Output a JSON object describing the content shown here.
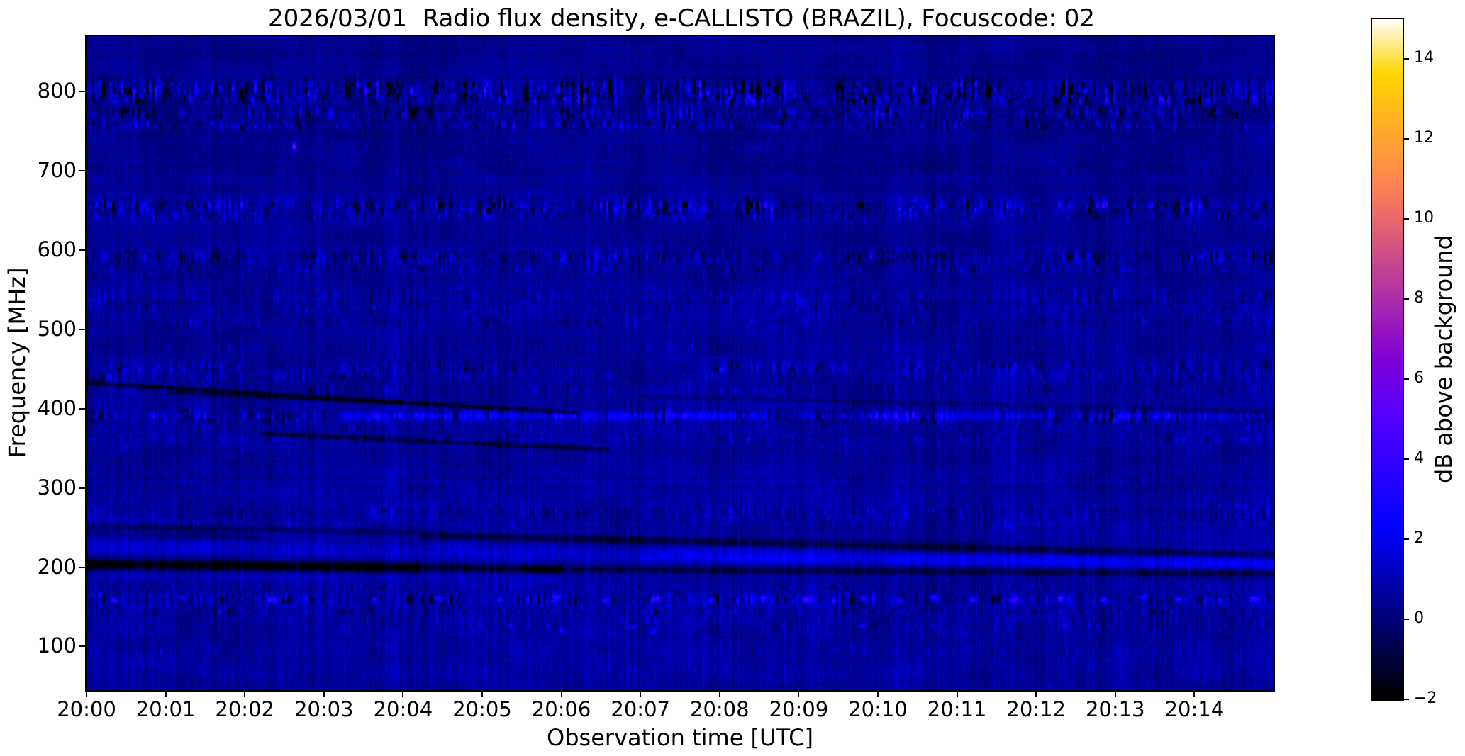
{
  "chart_data": {
    "type": "heatmap",
    "title": "2026/03/01  Radio flux density, e-CALLISTO (BRAZIL), Focuscode: 02",
    "xlabel": "Observation time [UTC]",
    "ylabel": "Frequency [MHz]",
    "colorbar_label": "dB above background",
    "colormap": "gnuplot2",
    "instrument": "e-CALLISTO (BRAZIL)",
    "date": "2026/03/01",
    "focuscode": "02",
    "x_axis": {
      "duration_minutes": 15,
      "ticks": [
        {
          "minute": 0,
          "label": "20:00"
        },
        {
          "minute": 1,
          "label": "20:01"
        },
        {
          "minute": 2,
          "label": "20:02"
        },
        {
          "minute": 3,
          "label": "20:03"
        },
        {
          "minute": 4,
          "label": "20:04"
        },
        {
          "minute": 5,
          "label": "20:05"
        },
        {
          "minute": 6,
          "label": "20:06"
        },
        {
          "minute": 7,
          "label": "20:07"
        },
        {
          "minute": 8,
          "label": "20:08"
        },
        {
          "minute": 9,
          "label": "20:09"
        },
        {
          "minute": 10,
          "label": "20:10"
        },
        {
          "minute": 11,
          "label": "20:11"
        },
        {
          "minute": 12,
          "label": "20:12"
        },
        {
          "minute": 13,
          "label": "20:13"
        },
        {
          "minute": 14,
          "label": "20:14"
        }
      ]
    },
    "y_axis": {
      "min_mhz": 45,
      "max_mhz": 870,
      "ticks": [
        {
          "value": 100,
          "label": "100"
        },
        {
          "value": 200,
          "label": "200"
        },
        {
          "value": 300,
          "label": "300"
        },
        {
          "value": 400,
          "label": "400"
        },
        {
          "value": 500,
          "label": "500"
        },
        {
          "value": 600,
          "label": "600"
        },
        {
          "value": 700,
          "label": "700"
        },
        {
          "value": 800,
          "label": "800"
        }
      ]
    },
    "colorbar": {
      "min_db": -2,
      "max_db": 15,
      "ticks": [
        {
          "value": -2,
          "label": "−2"
        },
        {
          "value": 0,
          "label": "0"
        },
        {
          "value": 2,
          "label": "2"
        },
        {
          "value": 4,
          "label": "4"
        },
        {
          "value": 6,
          "label": "6"
        },
        {
          "value": 8,
          "label": "8"
        },
        {
          "value": 10,
          "label": "10"
        },
        {
          "value": 12,
          "label": "12"
        },
        {
          "value": 14,
          "label": "14"
        }
      ]
    },
    "background": {
      "speckle_db": 0.55,
      "broad_col_db": 0.3,
      "row_db": 0.25,
      "blob_db": 0.45,
      "profile": [
        [
          45,
          0.6,
          0.66
        ],
        [
          100,
          0.64,
          0.78
        ],
        [
          200,
          0.58,
          0.72
        ],
        [
          300,
          0.55,
          0.66
        ],
        [
          450,
          0.52,
          0.62
        ],
        [
          600,
          0.48,
          0.55
        ],
        [
          700,
          0.38,
          0.4
        ],
        [
          800,
          0.34,
          0.32
        ],
        [
          870,
          0.32,
          0.26
        ]
      ]
    },
    "interference_bands": [
      {
        "f": 803,
        "w": 8,
        "bright": 3.4,
        "dark": 3.6
      },
      {
        "f": 790,
        "w": 4,
        "bright": 2.6,
        "dark": 3.0
      },
      {
        "f": 773,
        "w": 5,
        "bright": 2.2,
        "dark": 2.3
      },
      {
        "f": 758,
        "w": 4,
        "bright": 1.9,
        "dark": 2.0
      },
      {
        "f": 730,
        "w": 2.5,
        "bright": 0.7,
        "dark": 0.05
      },
      {
        "f": 700,
        "w": 3,
        "bright": 0.5,
        "dark": 0.2
      },
      {
        "f": 656,
        "w": 6.5,
        "bright": 2.8,
        "dark": 3.1
      },
      {
        "f": 644,
        "w": 4,
        "bright": 1.8,
        "dark": 1.4
      },
      {
        "f": 592,
        "w": 6,
        "bright": 2.1,
        "dark": 2.2
      },
      {
        "f": 576,
        "w": 4,
        "bright": 1.2,
        "dark": 1.0
      },
      {
        "f": 541,
        "w": 8,
        "bright": 1.2,
        "dark": 0.8
      },
      {
        "f": 526,
        "w": 4,
        "bright": 1.1,
        "dark": 0.75
      },
      {
        "f": 510,
        "w": 5,
        "bright": 1.1,
        "dark": 0.8
      },
      {
        "f": 478,
        "w": 4,
        "bright": 0.9,
        "dark": 0.5
      },
      {
        "f": 452,
        "w": 6,
        "bright": 1.5,
        "dark": 1.4
      },
      {
        "f": 440,
        "w": 4,
        "bright": 1.2,
        "dark": 1.0
      },
      {
        "f": 425,
        "w": 4,
        "bright": 1.1,
        "dark": 0.9
      },
      {
        "f": 391,
        "w": 6,
        "bright": 2.4,
        "dark": 2.7
      },
      {
        "f": 377,
        "w": 3,
        "bright": 1.0,
        "dark": 0.75
      },
      {
        "f": 362,
        "w": 4,
        "bright": 1.1,
        "dark": 0.9
      },
      {
        "f": 310,
        "w": 3,
        "bright": 0.7,
        "dark": 0.35
      },
      {
        "f": 270,
        "w": 8,
        "bright": 1.5,
        "dark": 0.9
      },
      {
        "f": 255,
        "w": 4,
        "bright": 1.0,
        "dark": 0.6
      },
      {
        "f": 176,
        "w": 3,
        "bright": 1.0,
        "dark": 1.2
      },
      {
        "f": 160,
        "w": 5,
        "bright": 2.6,
        "dark": 3.0
      },
      {
        "f": 145,
        "w": 3.5,
        "bright": 1.3,
        "dark": 1.6
      },
      {
        "f": 128,
        "w": 6,
        "bright": 1.1,
        "dark": 0.7
      },
      {
        "f": 95,
        "w": 5,
        "bright": 0.7,
        "dark": 0.45
      },
      {
        "f": 70,
        "w": 10,
        "bright": 0.6,
        "dark": 0.3
      }
    ],
    "drift_lines": [
      [
        0,
        433,
        6.2,
        395,
        -1.9,
        2.2
      ],
      [
        1.0,
        421,
        4.0,
        407,
        -1.2,
        2.0
      ],
      [
        2.2,
        369,
        6.6,
        349,
        -1.6,
        2.4
      ],
      [
        7.0,
        416,
        15,
        397,
        -0.7,
        2.2
      ],
      [
        0,
        204.5,
        4.2,
        200,
        -3.0,
        5
      ],
      [
        4.2,
        200,
        6.0,
        197.5,
        -1.8,
        4
      ],
      [
        5.5,
        198,
        15,
        192.5,
        -1.5,
        3.5
      ],
      [
        4.2,
        241,
        15,
        215.5,
        -1.6,
        4
      ],
      [
        0,
        252,
        4.2,
        244,
        -1.0,
        3
      ],
      [
        0,
        243,
        2.2,
        239,
        -0.8,
        2.5
      ],
      [
        0,
        231,
        7,
        219,
        0.6,
        6.5
      ],
      [
        7,
        219,
        15,
        207.5,
        0.95,
        6.5
      ],
      [
        0,
        222,
        7,
        212,
        0.5,
        5
      ],
      [
        7,
        212,
        15,
        202,
        0.8,
        5
      ],
      [
        3.2,
        391,
        8.6,
        391,
        1.4,
        4.5
      ],
      [
        9.0,
        391,
        12.2,
        391,
        1.0,
        4
      ],
      [
        12.8,
        390.5,
        14.6,
        390,
        0.9,
        4
      ],
      [
        0,
        190,
        6,
        185,
        0.4,
        7
      ]
    ],
    "vertical_lines": [
      {
        "t": 0.6,
        "amp": 0.6
      }
    ],
    "point_events": [
      [
        2.62,
        731,
        7.5,
        1.5,
        4
      ],
      [
        0.6,
        800,
        4.6,
        1.2,
        3
      ],
      [
        1.85,
        804,
        5.2,
        1.2,
        3
      ],
      [
        2.8,
        798,
        4.5,
        1.2,
        3
      ],
      [
        4.1,
        801,
        4.8,
        1.2,
        3
      ],
      [
        5.3,
        799,
        4.4,
        1.2,
        3
      ],
      [
        7.85,
        797,
        4.5,
        1.2,
        3
      ],
      [
        10.45,
        803,
        5.4,
        1.2,
        3
      ],
      [
        12.6,
        800,
        4.5,
        1.2,
        3
      ],
      [
        0.35,
        159,
        2.8,
        4,
        2.6
      ],
      [
        1.2,
        162,
        2.6,
        4,
        2.6
      ],
      [
        2.33,
        160,
        3.6,
        4,
        2.6
      ],
      [
        3.05,
        158,
        2.7,
        4,
        2.6
      ],
      [
        4.45,
        161,
        3.0,
        4,
        2.6
      ],
      [
        5.2,
        159,
        2.6,
        4,
        2.6
      ],
      [
        5.95,
        162,
        3.3,
        4,
        2.6
      ],
      [
        6.55,
        158,
        2.8,
        4,
        2.6
      ],
      [
        7.2,
        161,
        3.6,
        4,
        2.6
      ],
      [
        7.9,
        159,
        3.0,
        4,
        2.6
      ],
      [
        8.55,
        162,
        2.7,
        4,
        2.6
      ],
      [
        9.1,
        160,
        3.8,
        5,
        2.8
      ],
      [
        9.45,
        158,
        3.2,
        4,
        2.6
      ],
      [
        9.8,
        161,
        3.6,
        5,
        2.8
      ],
      [
        10.25,
        159,
        2.8,
        4,
        2.6
      ],
      [
        10.7,
        162,
        3.7,
        5,
        2.8
      ],
      [
        11.2,
        160,
        3.1,
        4,
        2.6
      ],
      [
        11.7,
        158,
        2.7,
        4,
        2.6
      ],
      [
        12.3,
        161,
        3.6,
        4,
        2.6
      ],
      [
        12.85,
        159,
        3.2,
        4,
        2.6
      ],
      [
        13.35,
        162,
        2.8,
        4,
        2.6
      ],
      [
        13.8,
        160,
        3.5,
        4,
        2.6
      ],
      [
        14.3,
        158,
        3.0,
        4,
        2.6
      ],
      [
        14.75,
        161,
        3.4,
        4,
        2.6
      ],
      [
        5.35,
        127,
        2.6,
        3,
        2.5
      ],
      [
        6.0,
        121,
        2.2,
        3,
        2.5
      ],
      [
        6.9,
        125,
        2.9,
        3,
        2.5
      ],
      [
        7.15,
        119,
        2.4,
        3,
        2.5
      ],
      [
        9.8,
        126,
        2.1,
        3,
        2.5
      ]
    ]
  }
}
